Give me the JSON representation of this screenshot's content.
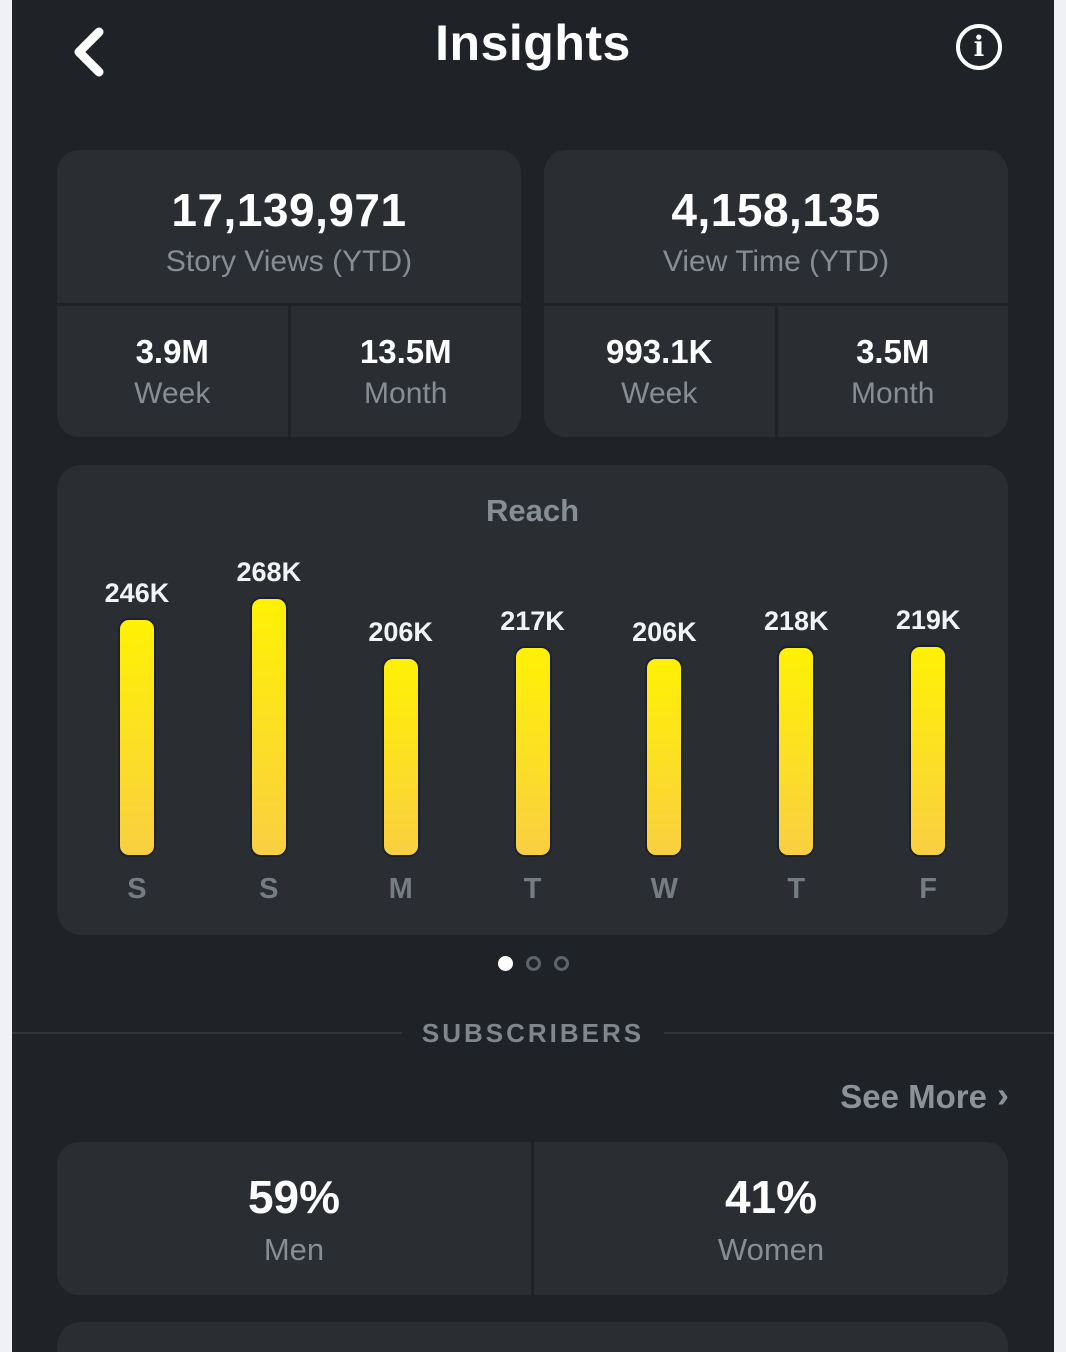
{
  "header": {
    "title": "Insights"
  },
  "stat_cards": [
    {
      "main_value": "17,139,971",
      "main_label": "Story Views (YTD)",
      "week_value": "3.9M",
      "week_label": "Week",
      "month_value": "13.5M",
      "month_label": "Month"
    },
    {
      "main_value": "4,158,135",
      "main_label": "View Time (YTD)",
      "week_value": "993.1K",
      "week_label": "Week",
      "month_value": "3.5M",
      "month_label": "Month"
    }
  ],
  "chart_data": {
    "type": "bar",
    "title": "Reach",
    "categories": [
      "S",
      "S",
      "M",
      "T",
      "W",
      "T",
      "F"
    ],
    "values": [
      246000,
      268000,
      206000,
      217000,
      206000,
      218000,
      219000
    ],
    "value_labels": [
      "246K",
      "268K",
      "206K",
      "217K",
      "206K",
      "218K",
      "219K"
    ],
    "ylim": [
      0,
      268000
    ],
    "grid": false,
    "legend": false,
    "bar_gradient_top": "#fff104",
    "bar_gradient_bottom": "#f9cf42"
  },
  "carousel": {
    "dot_count": 3,
    "active_index": 0
  },
  "sections": {
    "subscribers_label": "SUBSCRIBERS",
    "see_more_label": "See More",
    "see_more_chevron": "›"
  },
  "gender_stats": [
    {
      "value": "59%",
      "label": "Men"
    },
    {
      "value": "41%",
      "label": "Women"
    }
  ],
  "colors": {
    "app_background": "#1f2226",
    "card_background": "#2a2e33",
    "accent_yellow": "#fff104",
    "frame_background": "#eff1f4"
  }
}
